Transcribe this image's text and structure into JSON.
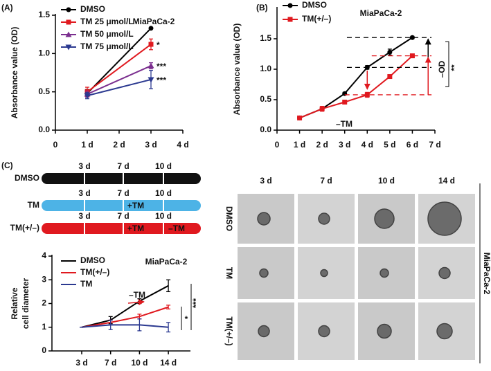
{
  "chart_data": [
    {
      "type": "line",
      "panel": "(A)",
      "title": "MiaPaCa-2",
      "y_label": "Absorbance value (OD)",
      "x": [
        1,
        3
      ],
      "xlim": [
        0,
        4
      ],
      "xticks": [
        0,
        {
          "value": 1,
          "label": "1 d"
        },
        {
          "value": 2,
          "label": "2 d"
        },
        {
          "value": 3,
          "label": "3 d"
        },
        {
          "value": 4,
          "label": "4 d"
        }
      ],
      "ylim": [
        0,
        1.5
      ],
      "yticks": [
        {
          "value": 0,
          "label": "0.0"
        },
        {
          "value": 0.5,
          "label": "0.5"
        },
        {
          "value": 1,
          "label": "1.0"
        },
        {
          "value": 1.5,
          "label": "1.5"
        }
      ],
      "series": [
        {
          "name": "DMSO",
          "color": "#000000",
          "marker": "circle",
          "values": [
            0.48,
            1.33
          ],
          "errors": [
            0.05,
            0.01
          ]
        },
        {
          "name": "TM 25 μmol/L",
          "color": "#e0191f",
          "marker": "square",
          "values": [
            0.5,
            1.12
          ],
          "errors": [
            0.06,
            0.07
          ],
          "annotation": "*"
        },
        {
          "name": "TM 50 μmol/L",
          "color": "#7b2f8f",
          "marker": "triangle-up",
          "values": [
            0.47,
            0.84
          ],
          "errors": [
            0.04,
            0.04
          ],
          "annotation": "***"
        },
        {
          "name": "TM 75 μmol/L",
          "color": "#2b3990",
          "marker": "triangle-down",
          "values": [
            0.45,
            0.66
          ],
          "errors": [
            0.04,
            0.12
          ],
          "annotation": "***"
        }
      ]
    },
    {
      "type": "line",
      "panel": "(B)",
      "title": "MiaPaCa-2",
      "y_label": "Absorbance value (OD)",
      "x": [
        1,
        2,
        3,
        4,
        5,
        6
      ],
      "xlim": [
        0,
        7
      ],
      "xticks": [
        0,
        {
          "value": 1,
          "label": "1 d"
        },
        {
          "value": 2,
          "label": "2 d"
        },
        {
          "value": 3,
          "label": "3 d"
        },
        {
          "value": 4,
          "label": "4 d"
        },
        {
          "value": 5,
          "label": "5 d"
        },
        {
          "value": 6,
          "label": "6 d"
        },
        {
          "value": 7,
          "label": "7 d"
        }
      ],
      "ylim": [
        0,
        2
      ],
      "yticks": [
        {
          "value": 0,
          "label": "0.0"
        },
        {
          "value": 0.5,
          "label": "0.5"
        },
        {
          "value": 1,
          "label": "1.0"
        },
        {
          "value": 1.5,
          "label": "1.5"
        }
      ],
      "series": [
        {
          "name": "DMSO",
          "color": "#000000",
          "marker": "circle",
          "values": [
            0.2,
            0.35,
            0.6,
            1.03,
            1.28,
            1.52
          ],
          "errors": [
            0.01,
            0.02,
            0.02,
            0.03,
            0.05,
            0.02
          ]
        },
        {
          "name": "TM(+/–)",
          "color": "#e0191f",
          "marker": "square",
          "values": [
            0.2,
            0.35,
            0.46,
            0.58,
            0.88,
            1.22
          ],
          "errors": [
            0.01,
            0.04,
            0.03,
            0.04,
            0.03,
            0.02
          ]
        }
      ],
      "annotations": [
        "–TM",
        "–OD",
        "**"
      ]
    },
    {
      "type": "line",
      "panel": "(C)",
      "title": "MiaPaCa-2",
      "y_label": [
        "Relative",
        "cell diameter"
      ],
      "categories": [
        "3 d",
        "7 d",
        "10 d",
        "14 d"
      ],
      "ylim": [
        0,
        4
      ],
      "yticks": [
        0,
        1,
        2,
        3,
        4
      ],
      "series": [
        {
          "name": "DMSO",
          "color": "#000000",
          "values": [
            1,
            1.3,
            2.1,
            2.75
          ],
          "errors": [
            0,
            0.15,
            0.1,
            0.25
          ]
        },
        {
          "name": "TM(+/–)",
          "color": "#e0191f",
          "values": [
            1,
            1.2,
            1.45,
            1.85
          ],
          "errors": [
            0,
            0.1,
            0.1,
            0.08
          ]
        },
        {
          "name": "TM",
          "color": "#2b3990",
          "values": [
            1,
            1.1,
            1.1,
            1.0
          ],
          "errors": [
            0,
            0.2,
            0.25,
            0.2
          ]
        }
      ],
      "annotations": [
        "–TM",
        "*",
        "***"
      ]
    }
  ],
  "timeline": {
    "days": [
      "3 d",
      "7 d",
      "10 d"
    ],
    "rows": [
      {
        "label": "DMSO",
        "color": "#111111",
        "notes": []
      },
      {
        "label": "TM",
        "color": "#4db3e6",
        "notes": [
          "+TM"
        ]
      },
      {
        "label": "TM(+/–)",
        "color": "#e0191f",
        "notes": [
          "+TM",
          "–TM"
        ]
      }
    ]
  },
  "image_grid": {
    "columns": [
      "3 d",
      "7 d",
      "10 d",
      "14 d"
    ],
    "rows": [
      "DMSO",
      "TM",
      "TM(+/–)"
    ],
    "side_label": "MiaPaCa-2"
  }
}
